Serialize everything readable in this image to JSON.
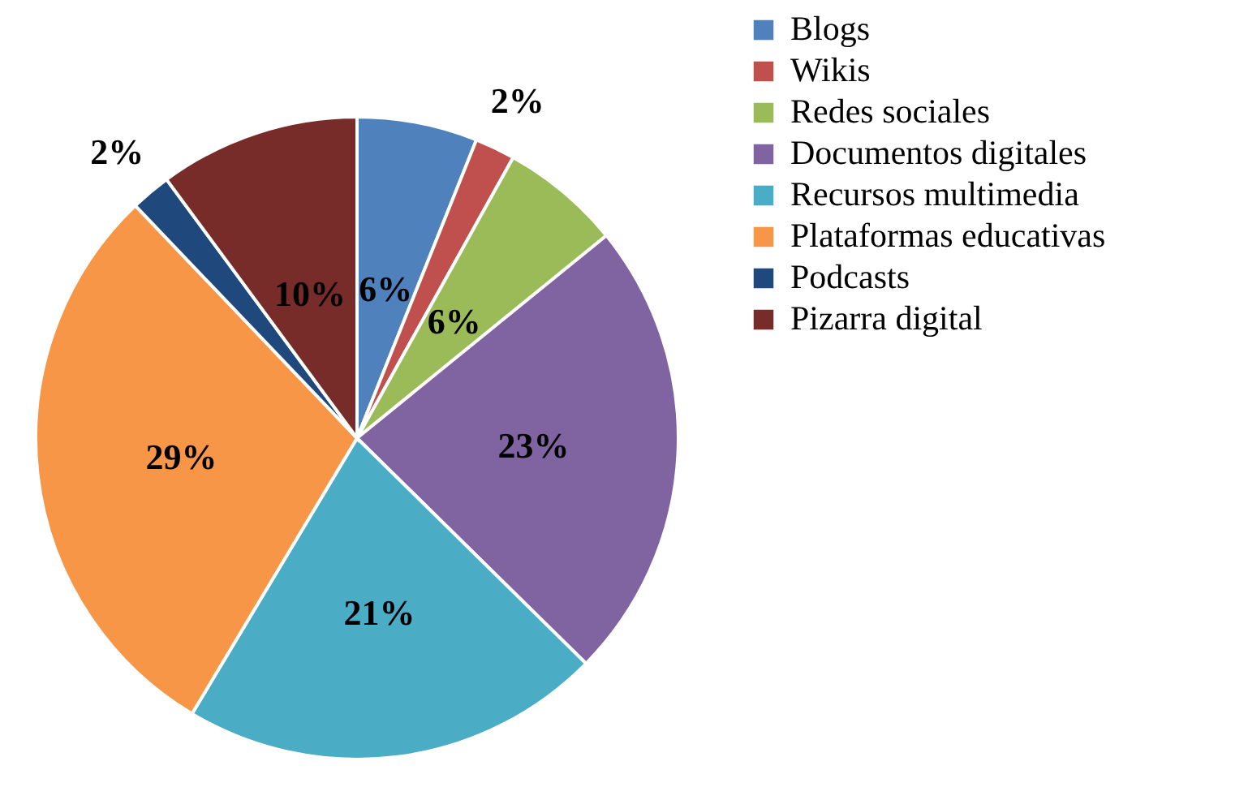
{
  "chart_data": {
    "type": "pie",
    "categories": [
      "Blogs",
      "Wikis",
      "Redes sociales",
      "Documentos digitales",
      "Recursos multimedia",
      "Plataformas educativas",
      "Podcasts",
      "Pizarra digital"
    ],
    "values": [
      6,
      2,
      6,
      23,
      21,
      29,
      2,
      10
    ],
    "value_labels": [
      "6%",
      "2%",
      "6%",
      "23%",
      "21%",
      "29%",
      "2%",
      "10%"
    ],
    "colors": [
      "#4f81bd",
      "#c0504d",
      "#9bbb59",
      "#8064a2",
      "#4bacc6",
      "#f79646",
      "#1f497d",
      "#772c2a"
    ],
    "legend": "right"
  }
}
